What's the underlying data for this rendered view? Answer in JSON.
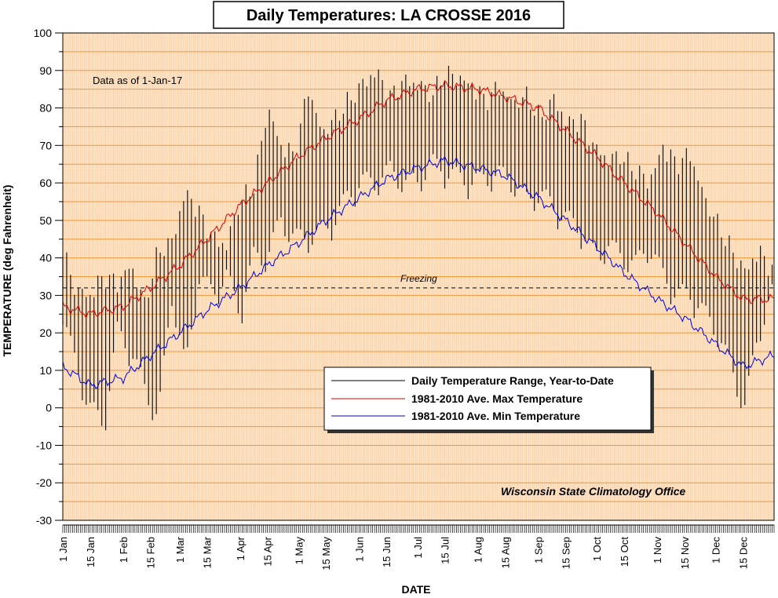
{
  "chart_data": {
    "type": "line",
    "title": "Daily Temperatures: LA CROSSE 2016",
    "xlabel": "DATE",
    "ylabel": "TEMPERATURE (deg Fahrenheit)",
    "ylim": [
      -30,
      100
    ],
    "yticks": [
      -30,
      -20,
      -10,
      0,
      10,
      20,
      30,
      40,
      50,
      60,
      70,
      80,
      90,
      100
    ],
    "x_range_days": [
      1,
      366
    ],
    "xtick_labels": [
      {
        "day": 1,
        "label": "1 Jan"
      },
      {
        "day": 15,
        "label": "15 Jan"
      },
      {
        "day": 32,
        "label": "1 Feb"
      },
      {
        "day": 46,
        "label": "15 Feb"
      },
      {
        "day": 61,
        "label": "1 Mar"
      },
      {
        "day": 75,
        "label": "15 Mar"
      },
      {
        "day": 92,
        "label": "1 Apr"
      },
      {
        "day": 106,
        "label": "15 Apr"
      },
      {
        "day": 122,
        "label": "1 May"
      },
      {
        "day": 136,
        "label": "15 May"
      },
      {
        "day": 153,
        "label": "1 Jun"
      },
      {
        "day": 167,
        "label": "15 Jun"
      },
      {
        "day": 183,
        "label": "1 Jul"
      },
      {
        "day": 197,
        "label": "15 Jul"
      },
      {
        "day": 214,
        "label": "1 Aug"
      },
      {
        "day": 228,
        "label": "15 Aug"
      },
      {
        "day": 245,
        "label": "1 Sep"
      },
      {
        "day": 259,
        "label": "15 Sep"
      },
      {
        "day": 275,
        "label": "1 Oct"
      },
      {
        "day": 289,
        "label": "15 Oct"
      },
      {
        "day": 306,
        "label": "1 Nov"
      },
      {
        "day": 320,
        "label": "15 Nov"
      },
      {
        "day": 336,
        "label": "1 Dec"
      },
      {
        "day": 350,
        "label": "15 Dec"
      }
    ],
    "reference_line": {
      "value": 32,
      "label": "Freezing"
    },
    "annotations": {
      "data_as_of": "Data as of 1-Jan-17",
      "source": "Wisconsin State Climatology Office"
    },
    "grid": true,
    "legend_position": "center-right",
    "series": [
      {
        "name": "Daily Temperature Range, Year-to-Date",
        "kind": "range",
        "color": "#000000",
        "days": [
          1,
          8,
          15,
          22,
          29,
          36,
          43,
          50,
          57,
          64,
          71,
          78,
          85,
          92,
          99,
          106,
          113,
          120,
          127,
          134,
          141,
          148,
          155,
          162,
          169,
          176,
          183,
          190,
          197,
          204,
          211,
          218,
          225,
          232,
          239,
          246,
          253,
          260,
          267,
          274,
          281,
          288,
          295,
          302,
          309,
          316,
          323,
          330,
          337,
          344,
          351,
          358,
          365
        ],
        "highs": [
          45,
          33,
          32,
          38,
          36,
          40,
          30,
          45,
          46,
          60,
          55,
          48,
          45,
          58,
          62,
          82,
          72,
          70,
          88,
          75,
          80,
          85,
          88,
          92,
          86,
          90,
          88,
          86,
          92,
          90,
          88,
          85,
          88,
          83,
          86,
          80,
          84,
          78,
          80,
          72,
          68,
          70,
          66,
          62,
          72,
          68,
          70,
          58,
          52,
          45,
          38,
          44,
          40
        ],
        "lows": [
          20,
          5,
          -5,
          -10,
          15,
          10,
          0,
          -8,
          25,
          5,
          30,
          25,
          30,
          20,
          35,
          35,
          45,
          40,
          40,
          42,
          45,
          52,
          55,
          55,
          58,
          55,
          55,
          60,
          58,
          56,
          55,
          56,
          57,
          55,
          50,
          52,
          48,
          45,
          42,
          35,
          38,
          35,
          33,
          38,
          30,
          25,
          25,
          20,
          15,
          5,
          -5,
          15,
          25
        ]
      },
      {
        "name": "1981-2010 Ave. Max Temperature",
        "kind": "line",
        "color": "#dd0000",
        "days": [
          1,
          15,
          32,
          46,
          61,
          75,
          92,
          106,
          122,
          136,
          153,
          167,
          183,
          197,
          214,
          228,
          245,
          259,
          275,
          289,
          306,
          320,
          336,
          350,
          366
        ],
        "values": [
          27,
          25,
          27,
          32,
          38,
          45,
          54,
          60,
          67,
          72,
          77,
          82,
          85,
          86,
          85,
          83,
          80,
          74,
          67,
          60,
          52,
          44,
          35,
          29,
          29
        ]
      },
      {
        "name": "1981-2010 Ave. Min Temperature",
        "kind": "line",
        "color": "#0000dd",
        "days": [
          1,
          15,
          32,
          46,
          61,
          75,
          92,
          106,
          122,
          136,
          153,
          167,
          183,
          197,
          214,
          228,
          245,
          259,
          275,
          289,
          306,
          320,
          336,
          350,
          366
        ],
        "values": [
          11,
          6,
          8,
          14,
          20,
          26,
          32,
          38,
          44,
          50,
          56,
          61,
          64,
          66,
          64,
          62,
          56,
          50,
          43,
          36,
          29,
          24,
          17,
          11,
          14
        ]
      }
    ]
  }
}
